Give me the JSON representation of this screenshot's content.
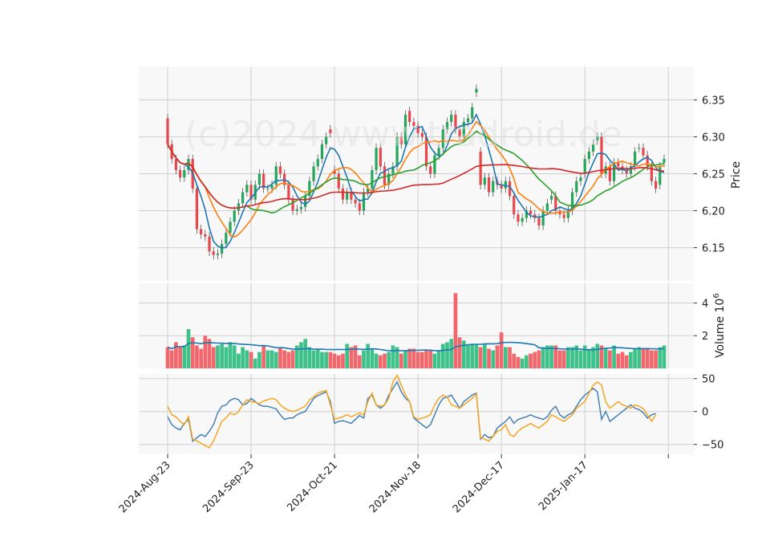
{
  "chart_data": {
    "type": "candlestick",
    "watermark": "(c)2024 www.tradroid.de",
    "x_tick_labels": [
      "2024-Aug-23",
      "2024-Sep-23",
      "2024-Oct-21",
      "2024-Nov-18",
      "2024-Dec-17",
      "2025-Jan-17"
    ],
    "panels": {
      "price": {
        "ylabel": "Price",
        "ylim": [
          6.105,
          6.395
        ],
        "yticks": [
          6.15,
          6.2,
          6.25,
          6.3,
          6.35
        ]
      },
      "volume": {
        "ylabel": "Volume  $10^{6}$",
        "ylim": [
          0,
          5.2
        ],
        "yticks": [
          2,
          4
        ],
        "unit_label": "10",
        "unit_exp": "6"
      },
      "oscillator": {
        "ylim": [
          -65,
          57
        ],
        "yticks": [
          50,
          0,
          -50
        ]
      }
    },
    "colors": {
      "up": "#26a65b",
      "down": "#e8474b",
      "up_volume": "#3ec28a",
      "down_volume": "#f0686c",
      "ma_fast": "#1f77b4",
      "ma_mid": "#ff7f0e",
      "ma_slow": "#2ca02c",
      "ma_long": "#d62728",
      "volume_ma": "#1f77b4",
      "osc_1": "#4682b4",
      "osc_2": "#f5a623",
      "panel_bg": "#f8f8f8",
      "grid": "#d0d0d0"
    },
    "closes": [
      6.29,
      6.27,
      6.255,
      6.245,
      6.255,
      6.27,
      6.23,
      6.175,
      6.168,
      6.165,
      6.145,
      6.14,
      6.142,
      6.155,
      6.17,
      6.185,
      6.2,
      6.21,
      6.225,
      6.235,
      6.215,
      6.235,
      6.25,
      6.23,
      6.23,
      6.235,
      6.26,
      6.25,
      6.235,
      6.215,
      6.2,
      6.202,
      6.205,
      6.22,
      6.24,
      6.26,
      6.27,
      6.29,
      6.3,
      6.305,
      6.25,
      6.23,
      6.215,
      6.225,
      6.215,
      6.21,
      6.2,
      6.225,
      6.23,
      6.255,
      6.285,
      6.26,
      6.235,
      6.25,
      6.26,
      6.3,
      6.29,
      6.33,
      6.32,
      6.315,
      6.305,
      6.3,
      6.26,
      6.25,
      6.275,
      6.285,
      6.31,
      6.32,
      6.33,
      6.31,
      6.3,
      6.32,
      6.325,
      6.34,
      6.365,
      6.235,
      6.245,
      6.225,
      6.24,
      6.235,
      6.23,
      6.24,
      6.22,
      6.195,
      6.185,
      6.19,
      6.2,
      6.195,
      6.19,
      6.18,
      6.2,
      6.21,
      6.22,
      6.2,
      6.195,
      6.19,
      6.2,
      6.225,
      6.24,
      6.245,
      6.27,
      6.28,
      6.29,
      6.3,
      6.25,
      6.26,
      6.24,
      6.265,
      6.26,
      6.255,
      6.25,
      6.26,
      6.28,
      6.285,
      6.275,
      6.26,
      6.24,
      6.23,
      6.26,
      6.27
    ],
    "opens": [
      6.325,
      6.29,
      6.27,
      6.255,
      6.245,
      6.255,
      6.27,
      6.23,
      6.175,
      6.168,
      6.165,
      6.145,
      6.14,
      6.142,
      6.155,
      6.17,
      6.185,
      6.2,
      6.21,
      6.225,
      6.235,
      6.215,
      6.235,
      6.25,
      6.23,
      6.23,
      6.235,
      6.26,
      6.25,
      6.235,
      6.215,
      6.2,
      6.202,
      6.205,
      6.22,
      6.24,
      6.26,
      6.27,
      6.29,
      6.31,
      6.255,
      6.25,
      6.23,
      6.215,
      6.225,
      6.215,
      6.21,
      6.2,
      6.225,
      6.23,
      6.255,
      6.285,
      6.26,
      6.235,
      6.25,
      6.26,
      6.3,
      6.29,
      6.335,
      6.32,
      6.315,
      6.305,
      6.3,
      6.26,
      6.25,
      6.275,
      6.285,
      6.31,
      6.32,
      6.33,
      6.31,
      6.3,
      6.32,
      6.325,
      6.36,
      6.28,
      6.235,
      6.245,
      6.225,
      6.24,
      6.235,
      6.23,
      6.24,
      6.22,
      6.195,
      6.185,
      6.19,
      6.2,
      6.195,
      6.19,
      6.18,
      6.2,
      6.215,
      6.22,
      6.2,
      6.195,
      6.19,
      6.2,
      6.225,
      6.24,
      6.25,
      6.27,
      6.28,
      6.295,
      6.3,
      6.25,
      6.26,
      6.24,
      6.265,
      6.26,
      6.255,
      6.25,
      6.26,
      6.285,
      6.285,
      6.275,
      6.26,
      6.24,
      6.235,
      6.265
    ],
    "volume_millions": [
      1.3,
      1.1,
      1.6,
      1.3,
      1.4,
      2.4,
      1.9,
      1.4,
      1.2,
      2.0,
      1.8,
      1.3,
      1.4,
      1.5,
      1.3,
      1.6,
      1.4,
      0.9,
      1.3,
      1.1,
      1.0,
      0.6,
      1.0,
      1.4,
      1.1,
      1.1,
      1.0,
      1.3,
      1.1,
      1.0,
      1.1,
      1.4,
      1.6,
      1.8,
      1.3,
      1.1,
      1.2,
      1.0,
      1.0,
      1.0,
      0.9,
      0.8,
      0.9,
      1.5,
      1.3,
      1.4,
      0.8,
      1.1,
      1.5,
      1.2,
      0.9,
      0.8,
      0.9,
      1.0,
      1.4,
      1.3,
      0.9,
      1.1,
      1.2,
      1.2,
      1.0,
      1.0,
      1.1,
      1.1,
      0.9,
      1.1,
      1.5,
      1.6,
      1.8,
      4.6,
      1.9,
      1.7,
      1.4,
      1.5,
      1.5,
      1.3,
      1.5,
      1.2,
      1.1,
      1.4,
      2.2,
      1.3,
      1.3,
      0.9,
      0.7,
      0.6,
      0.8,
      0.9,
      1.0,
      1.1,
      1.3,
      1.4,
      1.4,
      1.4,
      1.1,
      1.1,
      1.3,
      1.3,
      1.4,
      1.1,
      1.4,
      1.2,
      1.3,
      1.5,
      1.4,
      1.2,
      1.1,
      1.4,
      0.9,
      1.0,
      0.8,
      1.0,
      1.2,
      1.3,
      1.2,
      1.2,
      1.1,
      1.1,
      1.3,
      1.4
    ],
    "oscillator_series": [
      {
        "values": [
          -8,
          -20,
          -25,
          -28,
          -18,
          -12,
          -45,
          -40,
          -35,
          -38,
          -30,
          -20,
          -2,
          8,
          10,
          17,
          20,
          18,
          10,
          12,
          20,
          15,
          10,
          8,
          8,
          6,
          4,
          -5,
          -12,
          -10,
          -10,
          -5,
          -2,
          0,
          10,
          20,
          24,
          27,
          30,
          15,
          -18,
          -15,
          -14,
          -16,
          -18,
          -12,
          -6,
          -10,
          20,
          25,
          10,
          5,
          10,
          25,
          35,
          45,
          30,
          20,
          15,
          -10,
          -15,
          -20,
          -25,
          -20,
          -5,
          10,
          20,
          22,
          25,
          15,
          5,
          15,
          20,
          25,
          28,
          -42,
          -35,
          -40,
          -38,
          -25,
          -20,
          -15,
          -8,
          -18,
          -12,
          -10,
          -8,
          -5,
          -8,
          -10,
          -12,
          -8,
          2,
          8,
          -5,
          -10,
          -5,
          -2,
          8,
          18,
          25,
          30,
          35,
          30,
          -12,
          0,
          -15,
          -10,
          -5,
          0,
          5,
          10,
          5,
          3,
          -2,
          -10,
          -5,
          -3
        ]
      },
      {
        "values": [
          8,
          -5,
          -8,
          -15,
          -20,
          -8,
          -42,
          -45,
          -48,
          -52,
          -55,
          -45,
          -30,
          -15,
          -10,
          -2,
          -5,
          0,
          10,
          18,
          15,
          14,
          12,
          16,
          18,
          20,
          18,
          10,
          5,
          2,
          0,
          2,
          5,
          8,
          18,
          22,
          28,
          30,
          32,
          10,
          -12,
          -10,
          -8,
          -5,
          -8,
          -5,
          -2,
          -5,
          15,
          28,
          10,
          8,
          10,
          20,
          45,
          55,
          40,
          25,
          15,
          -8,
          -12,
          -10,
          -8,
          -5,
          10,
          20,
          25,
          22,
          10,
          8,
          5,
          10,
          15,
          20,
          27,
          -40,
          -42,
          -45,
          -38,
          -30,
          -28,
          -20,
          -35,
          -38,
          -30,
          -25,
          -22,
          -18,
          -22,
          -25,
          -20,
          -15,
          -5,
          -8,
          -12,
          -15,
          -10,
          -5,
          5,
          10,
          15,
          28,
          40,
          45,
          40,
          15,
          5,
          10,
          15,
          10,
          8,
          5,
          10,
          8,
          4,
          -5,
          -15,
          -5
        ]
      }
    ]
  }
}
